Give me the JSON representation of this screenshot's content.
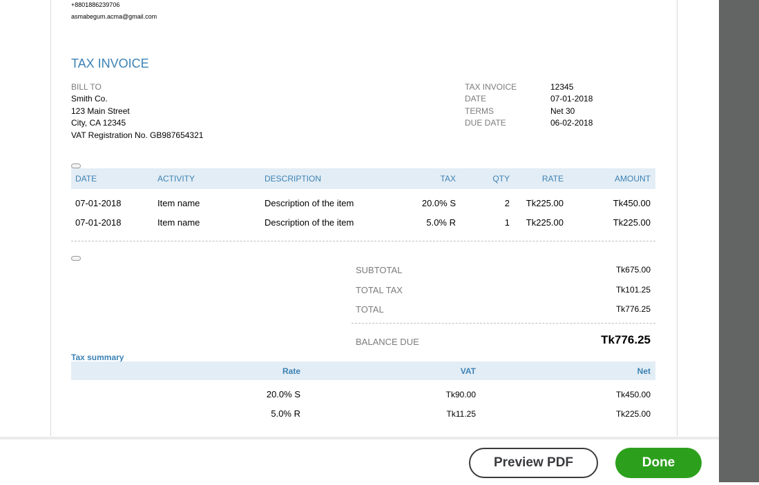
{
  "company": {
    "phone": "+8801886239706",
    "email": "asmabegum.acma@gmail.com"
  },
  "invoice": {
    "title": "TAX INVOICE",
    "bill_to_label": "BILL TO",
    "bill_to": [
      "Smith Co.",
      "123 Main Street",
      "City, CA 12345",
      "VAT Registration No. GB987654321"
    ],
    "meta": [
      {
        "label": "TAX INVOICE",
        "value": "12345"
      },
      {
        "label": "DATE",
        "value": "07-01-2018"
      },
      {
        "label": "TERMS",
        "value": "Net 30"
      },
      {
        "label": "DUE DATE",
        "value": "06-02-2018"
      }
    ]
  },
  "items_table": {
    "columns": [
      "DATE",
      "ACTIVITY",
      "DESCRIPTION",
      "TAX",
      "QTY",
      "RATE",
      "AMOUNT"
    ],
    "rows": [
      [
        "07-01-2018",
        "Item name",
        "Description of the item",
        "20.0% S",
        "2",
        "Tk225.00",
        "Tk450.00"
      ],
      [
        "07-01-2018",
        "Item name",
        "Description of the item",
        "5.0% R",
        "1",
        "Tk225.00",
        "Tk225.00"
      ]
    ]
  },
  "totals": {
    "subtotal_label": "SUBTOTAL",
    "subtotal": "Tk675.00",
    "total_tax_label": "TOTAL TAX",
    "total_tax": "Tk101.25",
    "total_label": "TOTAL",
    "total": "Tk776.25",
    "balance_due_label": "BALANCE DUE",
    "balance_due": "Tk776.25"
  },
  "tax_summary": {
    "title": "Tax summary",
    "columns": [
      "Rate",
      "VAT",
      "Net"
    ],
    "rows": [
      [
        "20.0% S",
        "Tk90.00",
        "Tk450.00"
      ],
      [
        "5.0% R",
        "Tk11.25",
        "Tk225.00"
      ]
    ]
  },
  "footer": {
    "preview_label": "Preview PDF",
    "done_label": "Done"
  },
  "colors": {
    "accent": "#3c82b4",
    "header_bg": "#e3edf5",
    "done_green": "#2ca01c",
    "side_panel": "#636565"
  }
}
